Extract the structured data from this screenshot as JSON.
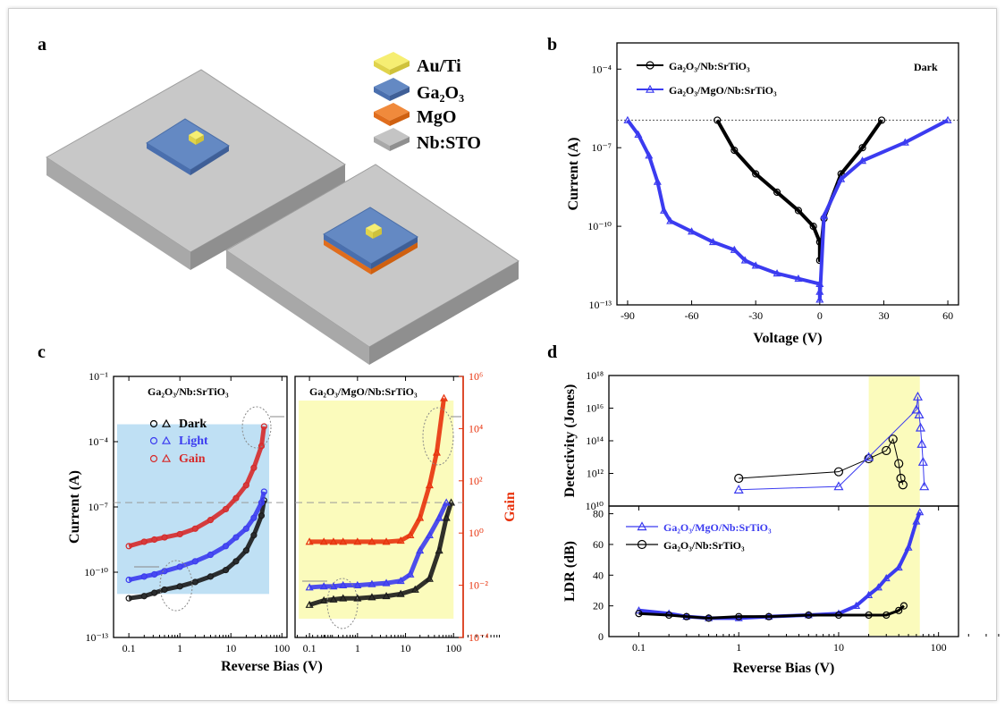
{
  "panels": {
    "a": {
      "label": "a",
      "legend": [
        {
          "text": "Au/Ti",
          "color": "#f6ee72"
        },
        {
          "text": "Ga₂O₃",
          "color": "#5f87c3"
        },
        {
          "text": "MgO",
          "color": "#f08a3c"
        },
        {
          "text": "Nb:STO",
          "color": "#b9b9b9"
        }
      ]
    },
    "b": {
      "label": "b"
    },
    "c": {
      "label": "c"
    },
    "d": {
      "label": "d"
    }
  },
  "chart_data": [
    {
      "id": "b",
      "type": "line",
      "annotation": "Dark",
      "xlabel": "Voltage (V)",
      "ylabel": "Current (A)",
      "xlim": [
        -95,
        65
      ],
      "ylog": true,
      "ylim_exp": [
        -13,
        -3
      ],
      "xticks": [
        -90,
        -60,
        -30,
        0,
        30,
        60
      ],
      "yticks": [
        {
          "v": -4,
          "label": "10⁻⁴"
        },
        {
          "v": -7,
          "label": "10⁻⁷"
        },
        {
          "v": -10,
          "label": "10⁻¹⁰"
        },
        {
          "v": -13,
          "label": "10⁻¹³"
        }
      ],
      "reference_line_log": -5.95,
      "series": [
        {
          "name": "Ga₂O₃/Nb:SrTiO₃",
          "color": "#000000",
          "marker": "circle",
          "x": [
            -48,
            -40,
            -30,
            -20,
            -10,
            -3,
            0,
            0,
            2,
            10,
            20,
            29
          ],
          "y": [
            -5.95,
            -7.1,
            -8.0,
            -8.7,
            -9.4,
            -10.0,
            -10.6,
            -11.3,
            -9.7,
            -8.0,
            -7.0,
            -5.95
          ]
        },
        {
          "name": "Ga₂O₃/MgO/Nb:SrTiO₃",
          "color": "#3b3bf0",
          "marker": "triangle",
          "x": [
            -90,
            -85,
            -80,
            -76,
            -73,
            -70,
            -60,
            -50,
            -40,
            -35,
            -30,
            -20,
            -10,
            0,
            0,
            0,
            2,
            10,
            20,
            40,
            60
          ],
          "y": [
            -5.95,
            -6.5,
            -7.3,
            -8.3,
            -9.4,
            -9.8,
            -10.2,
            -10.6,
            -10.9,
            -11.3,
            -11.5,
            -11.8,
            -12.0,
            -12.2,
            -12.5,
            -12.8,
            -9.6,
            -8.2,
            -7.5,
            -6.8,
            -5.95
          ]
        }
      ]
    },
    {
      "id": "c-left",
      "type": "scatter",
      "title": "Ga₂O₃/Nb:SrTiO₃",
      "xlabel": "Reverse Bias (V)",
      "ylabel": "Current (A)",
      "xlog": true,
      "xlim_exp": [
        -1.3,
        2.1
      ],
      "ylog": true,
      "ylim_exp": [
        -13,
        -1
      ],
      "xticks": [
        {
          "v": -1,
          "label": "0.1"
        },
        {
          "v": 0,
          "label": "1"
        },
        {
          "v": 1,
          "label": "10"
        },
        {
          "v": 2,
          "label": "100"
        }
      ],
      "yticks": [
        {
          "v": -1,
          "label": "10⁻¹"
        },
        {
          "v": -4,
          "label": "10⁻⁴"
        },
        {
          "v": -7,
          "label": "10⁻⁷"
        },
        {
          "v": -10,
          "label": "10⁻¹⁰"
        },
        {
          "v": -13,
          "label": "10⁻¹³"
        }
      ],
      "legend": [
        {
          "text": "Dark",
          "color": "#000000"
        },
        {
          "text": "Light",
          "color": "#3b3bf0"
        },
        {
          "text": "Gain",
          "color": "#d62a2a"
        }
      ],
      "series": [
        {
          "name": "Dark",
          "color": "#1a1a1a",
          "x": [
            -1.0,
            -0.7,
            -0.5,
            -0.3,
            0,
            0.3,
            0.6,
            0.9,
            1.1,
            1.3,
            1.45,
            1.6,
            1.65
          ],
          "y": [
            -11.2,
            -11.1,
            -10.95,
            -10.8,
            -10.65,
            -10.45,
            -10.2,
            -9.9,
            -9.5,
            -9.0,
            -8.3,
            -7.4,
            -6.7
          ]
        },
        {
          "name": "Light",
          "color": "#3b3bf0",
          "x": [
            -1.0,
            -0.7,
            -0.5,
            -0.3,
            0,
            0.3,
            0.6,
            0.9,
            1.1,
            1.3,
            1.45,
            1.6,
            1.65
          ],
          "y": [
            -10.35,
            -10.2,
            -10.1,
            -9.95,
            -9.75,
            -9.5,
            -9.2,
            -8.8,
            -8.4,
            -8.0,
            -7.5,
            -6.8,
            -6.3
          ]
        },
        {
          "name": "Gain",
          "color": "#d62a2a",
          "x": [
            -1.0,
            -0.7,
            -0.5,
            -0.3,
            0,
            0.3,
            0.6,
            0.9,
            1.1,
            1.3,
            1.45,
            1.6,
            1.65
          ],
          "y": [
            -8.8,
            -8.6,
            -8.5,
            -8.4,
            -8.25,
            -8.0,
            -7.6,
            -7.1,
            -6.6,
            -6.0,
            -5.2,
            -4.2,
            -3.3
          ]
        }
      ]
    },
    {
      "id": "c-right",
      "type": "scatter",
      "title": "Ga₂O₃/MgO/Nb:SrTiO₃",
      "xlabel": "Reverse Bias (V)",
      "ylabel2": "Gain",
      "xlog": true,
      "xlim_exp": [
        -1.3,
        2.2
      ],
      "y2log": true,
      "y2lim_exp": [
        -4,
        6
      ],
      "xticks": [
        {
          "v": -1,
          "label": "0.1"
        },
        {
          "v": 0,
          "label": "1"
        },
        {
          "v": 1,
          "label": "10"
        },
        {
          "v": 2,
          "label": "100"
        }
      ],
      "y2ticks": [
        {
          "v": -4,
          "label": "10⁻⁴"
        },
        {
          "v": -2,
          "label": "10⁻²"
        },
        {
          "v": 0,
          "label": "10⁰"
        },
        {
          "v": 2,
          "label": "10²"
        },
        {
          "v": 4,
          "label": "10⁴"
        },
        {
          "v": 6,
          "label": "10⁶"
        }
      ],
      "series": [
        {
          "name": "Dark",
          "color": "#1a1a1a",
          "x": [
            -1.0,
            -0.7,
            -0.5,
            -0.3,
            0,
            0.3,
            0.6,
            0.9,
            1.2,
            1.5,
            1.7,
            1.85,
            1.95
          ],
          "y": [
            -11.5,
            -11.3,
            -11.25,
            -11.2,
            -11.2,
            -11.15,
            -11.1,
            -11.0,
            -10.8,
            -10.3,
            -9.0,
            -7.5,
            -6.8
          ]
        },
        {
          "name": "Light",
          "color": "#3b3bf0",
          "x": [
            -1.0,
            -0.7,
            -0.5,
            -0.3,
            0,
            0.3,
            0.6,
            0.9,
            1.1,
            1.3,
            1.5,
            1.7,
            1.85
          ],
          "y": [
            -10.7,
            -10.65,
            -10.65,
            -10.6,
            -10.6,
            -10.55,
            -10.5,
            -10.4,
            -10.1,
            -9.0,
            -8.3,
            -7.5,
            -6.8
          ]
        },
        {
          "name": "Gain",
          "color": "#e8320c",
          "x": [
            -1.0,
            -0.7,
            -0.5,
            -0.3,
            0,
            0.3,
            0.6,
            0.9,
            1.1,
            1.3,
            1.5,
            1.65,
            1.8
          ],
          "y": [
            -8.6,
            -8.6,
            -8.6,
            -8.6,
            -8.6,
            -8.6,
            -8.6,
            -8.55,
            -8.3,
            -7.5,
            -6.0,
            -4.5,
            -2.0
          ]
        }
      ]
    },
    {
      "id": "d-top",
      "type": "line",
      "ylabel": "Detectivity (Jones)",
      "xlog": true,
      "ylog": true,
      "ylim_exp": [
        10,
        18
      ],
      "yticks": [
        {
          "v": 10,
          "label": "10¹⁰"
        },
        {
          "v": 12,
          "label": "10¹²"
        },
        {
          "v": 14,
          "label": "10¹⁴"
        },
        {
          "v": 16,
          "label": "10¹⁶"
        },
        {
          "v": 18,
          "label": "10¹⁸"
        }
      ],
      "highlight_x": [
        20,
        65
      ],
      "series": [
        {
          "name": "Ga₂O₃/Nb:SrTiO₃",
          "color": "#000000",
          "marker": "circle",
          "x": [
            1,
            10,
            20,
            30,
            35,
            40,
            42,
            44
          ],
          "y": [
            11.7,
            12.1,
            12.9,
            13.4,
            14.1,
            12.6,
            11.7,
            11.3
          ]
        },
        {
          "name": "Ga₂O₃/MgO/Nb:SrTiO₃",
          "color": "#3b3bf0",
          "marker": "triangle",
          "x": [
            1,
            10,
            20,
            60,
            62,
            64,
            66,
            68,
            70,
            72
          ],
          "y": [
            11.0,
            11.2,
            13.0,
            15.9,
            16.7,
            15.6,
            14.8,
            13.8,
            12.7,
            11.2
          ]
        }
      ]
    },
    {
      "id": "d-bottom",
      "type": "line",
      "xlabel": "Reverse Bias (V)",
      "ylabel": "LDR (dB)",
      "xlog": true,
      "xlim_exp": [
        -1.3,
        2.2
      ],
      "ylim": [
        0,
        85
      ],
      "xticks": [
        {
          "v": -1,
          "label": "0.1"
        },
        {
          "v": 0,
          "label": "1"
        },
        {
          "v": 1,
          "label": "10"
        },
        {
          "v": 2,
          "label": "100"
        }
      ],
      "yticks": [
        {
          "v": 0,
          "label": "0"
        },
        {
          "v": 20,
          "label": "20"
        },
        {
          "v": 40,
          "label": "40"
        },
        {
          "v": 60,
          "label": "60"
        },
        {
          "v": 80,
          "label": "80"
        }
      ],
      "highlight_x": [
        20,
        65
      ],
      "series": [
        {
          "name": "Ga₂O₃/MgO/Nb:SrTiO₃",
          "color": "#3b3bf0",
          "marker": "triangle",
          "x": [
            0.1,
            0.2,
            0.3,
            0.5,
            1,
            2,
            5,
            10,
            15,
            20,
            25,
            30,
            40,
            50,
            60,
            65
          ],
          "y": [
            17,
            15,
            13,
            12,
            12,
            13,
            14,
            15,
            20,
            27,
            32,
            38,
            45,
            58,
            75,
            81
          ]
        },
        {
          "name": "Ga₂O₃/Nb:SrTiO₃",
          "color": "#000000",
          "marker": "circle",
          "x": [
            0.1,
            0.2,
            0.3,
            0.5,
            1,
            2,
            5,
            10,
            20,
            30,
            40,
            45
          ],
          "y": [
            15,
            14,
            13,
            12,
            13,
            13,
            14,
            14,
            14,
            14,
            17,
            20
          ]
        }
      ]
    }
  ]
}
